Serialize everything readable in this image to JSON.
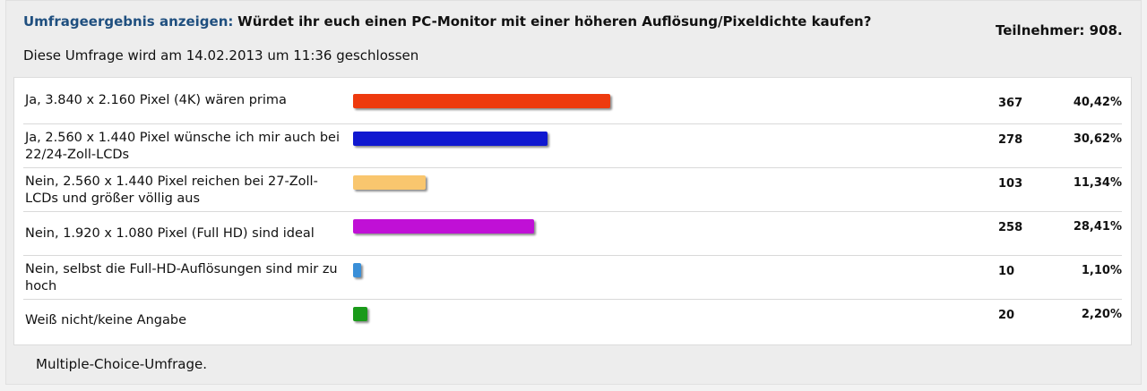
{
  "poll": {
    "title_prefix": "Umfrageergebnis anzeigen:",
    "question": "Würdet ihr euch einen PC-Monitor mit einer höheren Auflösung/Pixeldichte kaufen?",
    "participants": "Teilnehmer: 908.",
    "closing": "Diese Umfrage wird am 14.02.2013 um 11:36 geschlossen",
    "footer": "Multiple-Choice-Umfrage.",
    "options": [
      {
        "label": "Ja, 3.840 x 2.160 Pixel (4K) wären prima",
        "votes": "367",
        "percent": "40,42%",
        "share": 0.4042,
        "color": "#ee3a0e"
      },
      {
        "label": "Ja, 2.560 x 1.440 Pixel wünsche ich mir auch bei 22/24-Zoll-LCDs",
        "votes": "278",
        "percent": "30,62%",
        "share": 0.3062,
        "color": "#1018d0"
      },
      {
        "label": "Nein, 2.560 x 1.440 Pixel reichen bei 27-Zoll-LCDs und größer völlig aus",
        "votes": "103",
        "percent": "11,34%",
        "share": 0.1134,
        "color": "#f9c66e"
      },
      {
        "label": "Nein, 1.920 x 1.080 Pixel (Full HD) sind ideal",
        "votes": "258",
        "percent": "28,41%",
        "share": 0.2841,
        "color": "#c010d6"
      },
      {
        "label": "Nein, selbst die Full-HD-Auflösungen sind mir zu hoch",
        "votes": "10",
        "percent": "1,10%",
        "share": 0.011,
        "color": "#3a8fd8"
      },
      {
        "label": "Weiß nicht/keine Angabe",
        "votes": "20",
        "percent": "2,20%",
        "share": 0.022,
        "color": "#1a9a1a"
      }
    ]
  }
}
